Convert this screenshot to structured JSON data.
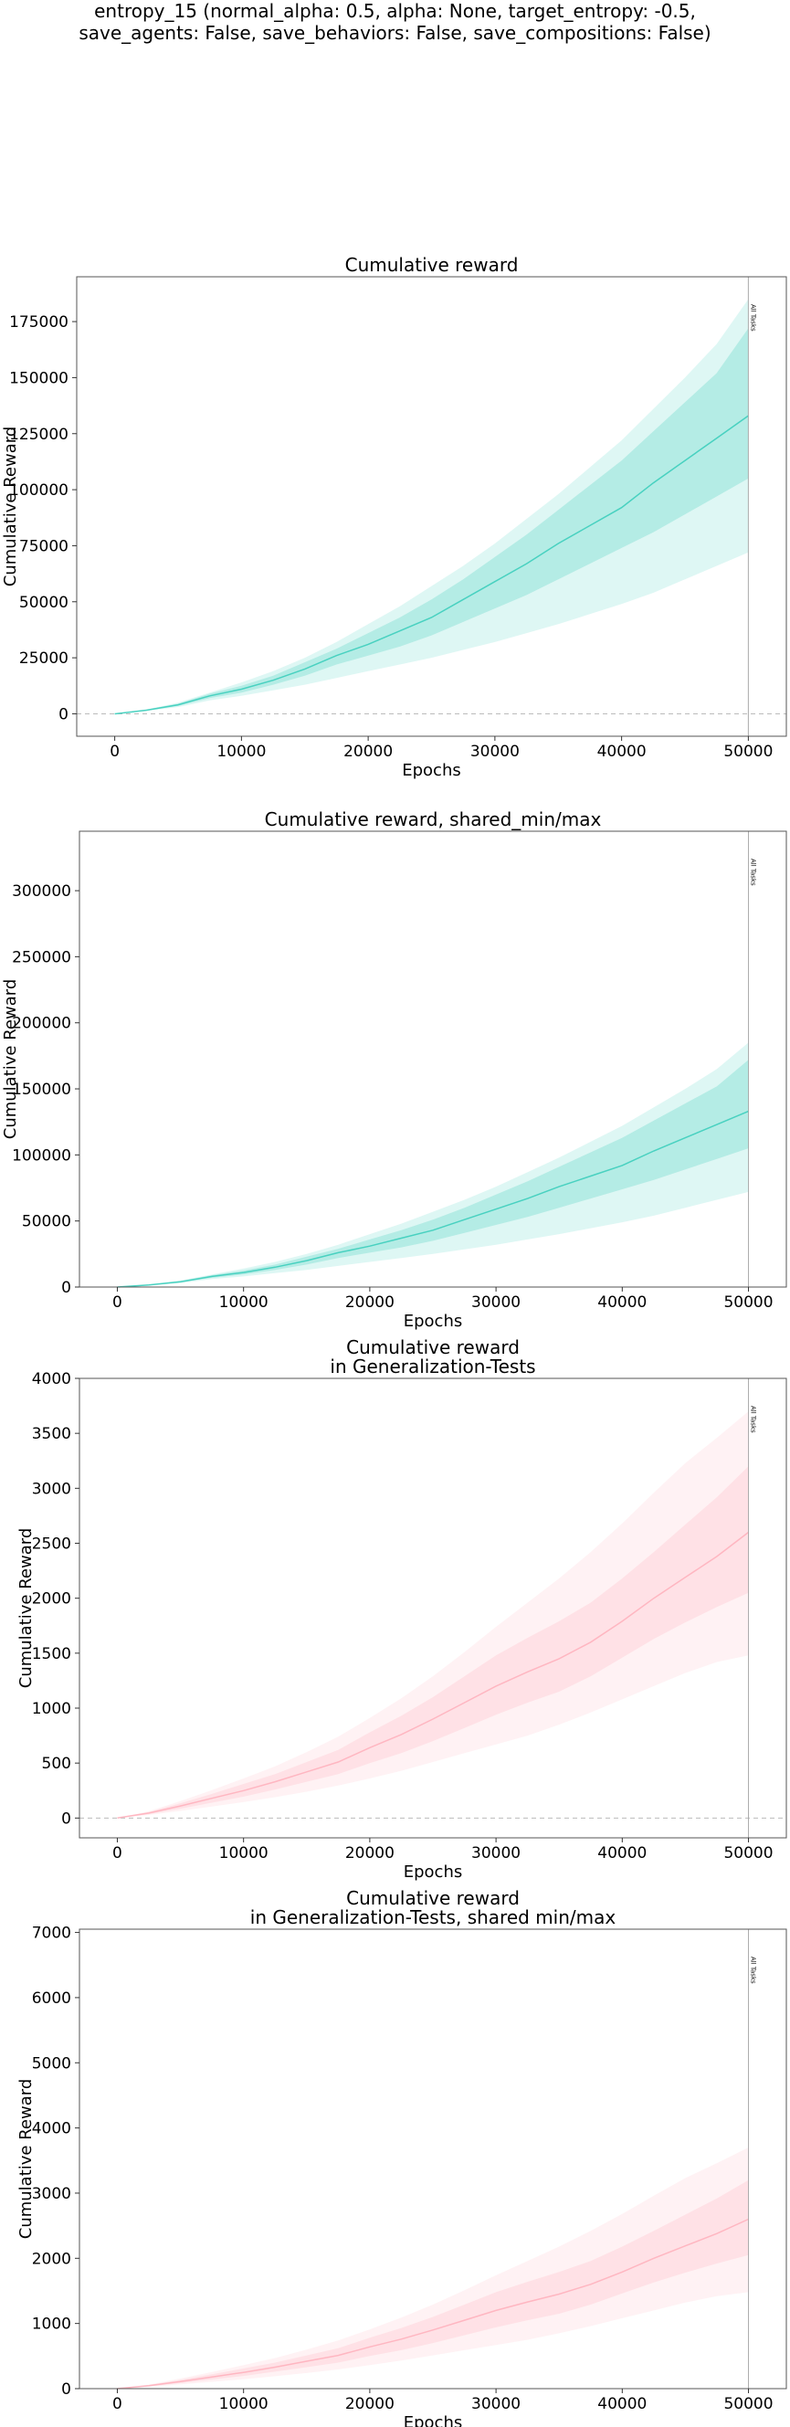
{
  "suptitle": [
    "entropy_15 (normal_alpha: 0.5, alpha: None, target_entropy: -0.5,",
    "save_agents: False, save_behaviors: False, save_compositions: False)"
  ],
  "chart_data": [
    {
      "type": "line",
      "title": [
        "Cumulative reward"
      ],
      "xlabel": "Epochs",
      "ylabel": "Cumulative Reward",
      "xlim": [
        -3000,
        53000
      ],
      "ylim": [
        -10000,
        195000
      ],
      "xticks": [
        0,
        10000,
        20000,
        30000,
        40000,
        50000
      ],
      "yticks": [
        0,
        25000,
        50000,
        75000,
        100000,
        125000,
        150000,
        175000
      ],
      "zero_line": true,
      "vline": {
        "x": 50000,
        "label": "All Tasks"
      },
      "color": "#48d1c0",
      "series": [
        {
          "x": [
            0,
            2500,
            5000,
            7500,
            10000,
            12500,
            15000,
            17500,
            20000,
            22500,
            25000,
            27500,
            30000,
            32500,
            35000,
            37500,
            40000,
            42500,
            45000,
            47500,
            50000
          ],
          "y": [
            0,
            1600,
            4000,
            8000,
            11000,
            15000,
            20000,
            26000,
            31000,
            37000,
            43000,
            51000,
            59000,
            67000,
            76000,
            84000,
            92000,
            103000,
            113000,
            123000,
            133000
          ],
          "std_low": [
            0,
            1400,
            3500,
            7000,
            9500,
            13000,
            17000,
            22000,
            26000,
            30000,
            35000,
            41000,
            47000,
            53000,
            60000,
            67000,
            74000,
            81000,
            89000,
            97000,
            105000
          ],
          "std_high": [
            0,
            1800,
            4500,
            9000,
            12500,
            17000,
            23000,
            29000,
            36000,
            43000,
            51000,
            60000,
            70000,
            80000,
            91000,
            102000,
            113000,
            126000,
            139000,
            152000,
            172000
          ],
          "min": [
            0,
            1300,
            3000,
            6000,
            8000,
            10500,
            13000,
            16000,
            19000,
            22000,
            25000,
            28500,
            32000,
            36000,
            40000,
            44500,
            49000,
            54000,
            60000,
            66000,
            72000
          ],
          "max": [
            0,
            1900,
            5000,
            9500,
            14000,
            19000,
            25000,
            32000,
            40000,
            48000,
            57000,
            66000,
            76000,
            87000,
            98000,
            110000,
            122000,
            136000,
            150000,
            165000,
            185000
          ]
        }
      ]
    },
    {
      "type": "line",
      "title": [
        "Cumulative reward, shared_min/max"
      ],
      "xlabel": "Epochs",
      "ylabel": "Cumulative Reward",
      "xlim": [
        -3000,
        53000
      ],
      "ylim": [
        0,
        345000
      ],
      "xticks": [
        0,
        10000,
        20000,
        30000,
        40000,
        50000
      ],
      "yticks": [
        0,
        50000,
        100000,
        150000,
        200000,
        250000,
        300000
      ],
      "zero_line": false,
      "vline": {
        "x": 50000,
        "label": "All Tasks"
      },
      "color": "#48d1c0",
      "series": [
        {
          "x": [
            0,
            2500,
            5000,
            7500,
            10000,
            12500,
            15000,
            17500,
            20000,
            22500,
            25000,
            27500,
            30000,
            32500,
            35000,
            37500,
            40000,
            42500,
            45000,
            47500,
            50000
          ],
          "y": [
            0,
            1600,
            4000,
            8000,
            11000,
            15000,
            20000,
            26000,
            31000,
            37000,
            43000,
            51000,
            59000,
            67000,
            76000,
            84000,
            92000,
            103000,
            113000,
            123000,
            133000
          ],
          "std_low": [
            0,
            1400,
            3500,
            7000,
            9500,
            13000,
            17000,
            22000,
            26000,
            30000,
            35000,
            41000,
            47000,
            53000,
            60000,
            67000,
            74000,
            81000,
            89000,
            97000,
            105000
          ],
          "std_high": [
            0,
            1800,
            4500,
            9000,
            12500,
            17000,
            23000,
            29000,
            36000,
            43000,
            51000,
            60000,
            70000,
            80000,
            91000,
            102000,
            113000,
            126000,
            139000,
            152000,
            172000
          ],
          "min": [
            0,
            1300,
            3000,
            6000,
            8000,
            10500,
            13000,
            16000,
            19000,
            22000,
            25000,
            28500,
            32000,
            36000,
            40000,
            44500,
            49000,
            54000,
            60000,
            66000,
            72000
          ],
          "max": [
            0,
            1900,
            5000,
            9500,
            14000,
            19000,
            25000,
            32000,
            40000,
            48000,
            57000,
            66000,
            76000,
            87000,
            98000,
            110000,
            122000,
            136000,
            150000,
            165000,
            185000
          ]
        }
      ]
    },
    {
      "type": "line",
      "title": [
        "Cumulative reward",
        "in Generalization-Tests"
      ],
      "xlabel": "Epochs",
      "ylabel": "Cumulative Reward",
      "xlim": [
        -3000,
        53000
      ],
      "ylim": [
        -180,
        4000
      ],
      "xticks": [
        0,
        10000,
        20000,
        30000,
        40000,
        50000
      ],
      "yticks": [
        0,
        500,
        1000,
        1500,
        2000,
        2500,
        3000,
        3500,
        4000
      ],
      "zero_line": true,
      "vline": {
        "x": 50000,
        "label": "All Tasks"
      },
      "color": "#ffb6c1",
      "series": [
        {
          "x": [
            0,
            2500,
            5000,
            7500,
            10000,
            12500,
            15000,
            17500,
            20000,
            22500,
            25000,
            27500,
            30000,
            32500,
            35000,
            37500,
            40000,
            42500,
            45000,
            47500,
            50000
          ],
          "y": [
            0,
            45,
            110,
            180,
            250,
            330,
            420,
            510,
            640,
            760,
            900,
            1050,
            1200,
            1330,
            1450,
            1600,
            1790,
            2000,
            2190,
            2380,
            2600
          ],
          "std_low": [
            0,
            35,
            85,
            140,
            195,
            260,
            330,
            400,
            500,
            590,
            700,
            820,
            940,
            1050,
            1150,
            1290,
            1460,
            1630,
            1780,
            1920,
            2050
          ],
          "std_high": [
            0,
            55,
            135,
            220,
            310,
            400,
            510,
            620,
            780,
            930,
            1100,
            1290,
            1480,
            1640,
            1790,
            1960,
            2180,
            2420,
            2670,
            2920,
            3200
          ],
          "min": [
            0,
            28,
            65,
            105,
            145,
            190,
            240,
            295,
            360,
            430,
            510,
            590,
            670,
            750,
            850,
            960,
            1080,
            1200,
            1320,
            1420,
            1480
          ],
          "max": [
            0,
            62,
            155,
            255,
            360,
            470,
            600,
            740,
            910,
            1090,
            1290,
            1510,
            1740,
            1960,
            2180,
            2420,
            2680,
            2960,
            3230,
            3460,
            3700
          ]
        }
      ]
    },
    {
      "type": "line",
      "title": [
        "Cumulative reward",
        "in Generalization-Tests, shared min/max"
      ],
      "xlabel": "Epochs",
      "ylabel": "Cumulative Reward",
      "xlim": [
        -3000,
        53000
      ],
      "ylim": [
        0,
        7050
      ],
      "xticks": [
        0,
        10000,
        20000,
        30000,
        40000,
        50000
      ],
      "yticks": [
        0,
        1000,
        2000,
        3000,
        4000,
        5000,
        6000,
        7000
      ],
      "zero_line": false,
      "vline": {
        "x": 50000,
        "label": "All Tasks"
      },
      "color": "#ffb6c1",
      "series": [
        {
          "x": [
            0,
            2500,
            5000,
            7500,
            10000,
            12500,
            15000,
            17500,
            20000,
            22500,
            25000,
            27500,
            30000,
            32500,
            35000,
            37500,
            40000,
            42500,
            45000,
            47500,
            50000
          ],
          "y": [
            0,
            45,
            110,
            180,
            250,
            330,
            420,
            510,
            640,
            760,
            900,
            1050,
            1200,
            1330,
            1450,
            1600,
            1790,
            2000,
            2190,
            2380,
            2600
          ],
          "std_low": [
            0,
            35,
            85,
            140,
            195,
            260,
            330,
            400,
            500,
            590,
            700,
            820,
            940,
            1050,
            1150,
            1290,
            1460,
            1630,
            1780,
            1920,
            2050
          ],
          "std_high": [
            0,
            55,
            135,
            220,
            310,
            400,
            510,
            620,
            780,
            930,
            1100,
            1290,
            1480,
            1640,
            1790,
            1960,
            2180,
            2420,
            2670,
            2920,
            3200
          ],
          "min": [
            0,
            28,
            65,
            105,
            145,
            190,
            240,
            295,
            360,
            430,
            510,
            590,
            670,
            750,
            850,
            960,
            1080,
            1200,
            1320,
            1420,
            1480
          ],
          "max": [
            0,
            62,
            155,
            255,
            360,
            470,
            600,
            740,
            910,
            1090,
            1290,
            1510,
            1740,
            1960,
            2180,
            2420,
            2680,
            2960,
            3230,
            3460,
            3700
          ]
        }
      ]
    }
  ]
}
